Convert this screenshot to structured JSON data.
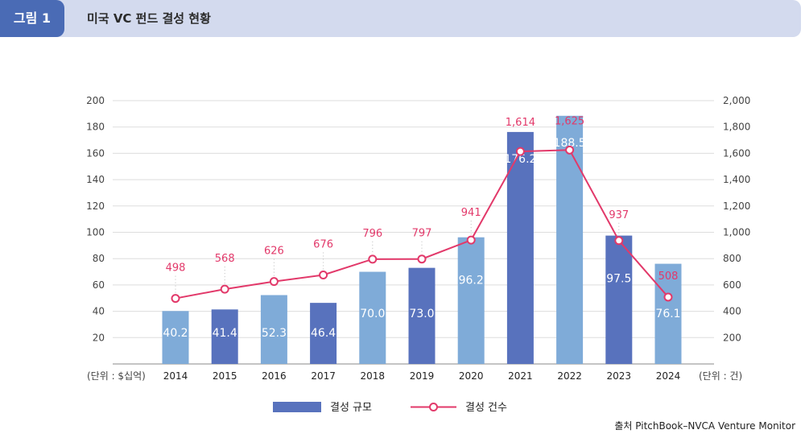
{
  "header": {
    "figure_label": "그림 1",
    "title": "미국 VC 펀드 결성 현황"
  },
  "source": "출처 PitchBook–NVCA Venture Monitor",
  "colors": {
    "bar_dark": "#5872bd",
    "bar_light": "#7fabd8",
    "line": "#e2396a",
    "grid": "#dddddd",
    "tag_bg": "#4a6bb5",
    "header_bg": "#d3daee"
  },
  "chart_data": {
    "type": "bar",
    "categories": [
      "2014",
      "2015",
      "2016",
      "2017",
      "2018",
      "2019",
      "2020",
      "2021",
      "2022",
      "2023",
      "2024"
    ],
    "series": [
      {
        "name": "결성 규모",
        "type": "bar",
        "axis": "left",
        "values": [
          40.2,
          41.4,
          52.3,
          46.4,
          70.0,
          73.0,
          96.2,
          176.2,
          188.5,
          97.5,
          76.1
        ],
        "labels": [
          "40.2",
          "41.4",
          "52.3",
          "46.4",
          "70.0",
          "73.0",
          "96.2",
          "176.2",
          "188.5",
          "97.5",
          "76.1"
        ],
        "bar_colors": [
          "light",
          "dark",
          "light",
          "dark",
          "light",
          "dark",
          "light",
          "dark",
          "light",
          "dark",
          "light"
        ]
      },
      {
        "name": "결성 건수",
        "type": "line",
        "axis": "right",
        "values": [
          498,
          568,
          626,
          676,
          796,
          797,
          941,
          1614,
          1625,
          937,
          508
        ],
        "labels": [
          "498",
          "568",
          "626",
          "676",
          "796",
          "797",
          "941",
          "1,614",
          "1,625",
          "937",
          "508"
        ]
      }
    ],
    "y_left": {
      "label": "(단위 : $십억)",
      "ylim": [
        0,
        200
      ],
      "ticks": [
        "20",
        "40",
        "60",
        "80",
        "100",
        "120",
        "140",
        "160",
        "180",
        "200"
      ]
    },
    "y_right": {
      "label": "(단위 : 건)",
      "ylim": [
        0,
        2000
      ],
      "ticks": [
        "200",
        "400",
        "600",
        "800",
        "1,000",
        "1,200",
        "1,400",
        "1,600",
        "1,800",
        "2,000"
      ]
    },
    "grid": true,
    "legend_position": "bottom-center"
  }
}
